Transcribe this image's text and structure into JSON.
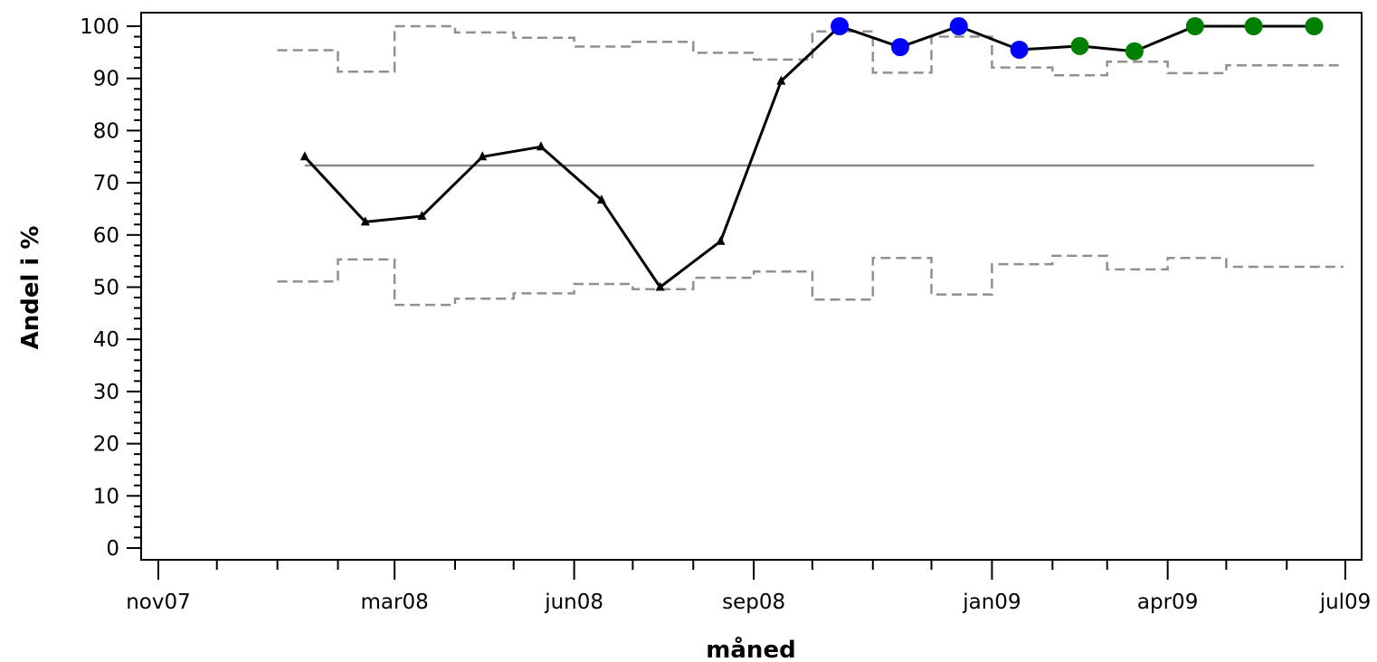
{
  "chart_data": {
    "type": "line",
    "title": "",
    "xlabel": "måned",
    "ylabel": "Andel i %",
    "x_tick_labels": [
      "nov07",
      "mar08",
      "jun08",
      "sep08",
      "jan09",
      "apr09",
      "jul09"
    ],
    "x_tick_dates": [
      "2007-11-01",
      "2008-03-01",
      "2008-06-01",
      "2008-09-01",
      "2009-01-01",
      "2009-04-01",
      "2009-07-01"
    ],
    "xlim": [
      "2007-11-01",
      "2009-07-01"
    ],
    "ylim": [
      0,
      100
    ],
    "y_ticks": [
      0,
      10,
      20,
      30,
      40,
      50,
      60,
      70,
      80,
      90,
      100
    ],
    "grid": false,
    "center_line": 73.3,
    "series": [
      {
        "role": "observed",
        "color": "#000000",
        "points": [
          {
            "x": "2008-01-15",
            "y": 75,
            "marker": "triangle",
            "color": "#000000"
          },
          {
            "x": "2008-02-15",
            "y": 62.5,
            "marker": "triangle",
            "color": "#000000"
          },
          {
            "x": "2008-03-15",
            "y": 63.6,
            "marker": "triangle",
            "color": "#000000"
          },
          {
            "x": "2008-04-15",
            "y": 75,
            "marker": "triangle",
            "color": "#000000"
          },
          {
            "x": "2008-05-15",
            "y": 76.9,
            "marker": "triangle",
            "color": "#000000"
          },
          {
            "x": "2008-06-15",
            "y": 66.7,
            "marker": "triangle",
            "color": "#000000"
          },
          {
            "x": "2008-07-15",
            "y": 50,
            "marker": "triangle",
            "color": "#000000"
          },
          {
            "x": "2008-08-15",
            "y": 58.8,
            "marker": "triangle",
            "color": "#000000"
          },
          {
            "x": "2008-09-15",
            "y": 89.5,
            "marker": "triangle",
            "color": "#000000"
          },
          {
            "x": "2008-10-15",
            "y": 100,
            "marker": "circle",
            "color": "#0000ff"
          },
          {
            "x": "2008-11-15",
            "y": 96,
            "marker": "circle",
            "color": "#0000ff"
          },
          {
            "x": "2008-12-15",
            "y": 100,
            "marker": "circle",
            "color": "#0000ff"
          },
          {
            "x": "2009-01-15",
            "y": 95.5,
            "marker": "circle",
            "color": "#0000ff"
          },
          {
            "x": "2009-02-15",
            "y": 96.2,
            "marker": "circle",
            "color": "#008000"
          },
          {
            "x": "2009-03-15",
            "y": 95.2,
            "marker": "circle",
            "color": "#008000"
          },
          {
            "x": "2009-04-15",
            "y": 100,
            "marker": "circle",
            "color": "#008000"
          },
          {
            "x": "2009-05-15",
            "y": 100,
            "marker": "circle",
            "color": "#008000"
          },
          {
            "x": "2009-06-15",
            "y": 100,
            "marker": "circle",
            "color": "#008000"
          }
        ]
      }
    ],
    "upper_control_limit": {
      "style": "dashed-step",
      "color": "#909090",
      "steps": [
        {
          "from": "2008-01-01",
          "to": "2008-02-01",
          "y": 95.4
        },
        {
          "from": "2008-02-01",
          "to": "2008-03-01",
          "y": 91.3
        },
        {
          "from": "2008-03-01",
          "to": "2008-04-01",
          "y": 100
        },
        {
          "from": "2008-04-01",
          "to": "2008-05-01",
          "y": 98.8
        },
        {
          "from": "2008-05-01",
          "to": "2008-06-01",
          "y": 97.8
        },
        {
          "from": "2008-06-01",
          "to": "2008-07-01",
          "y": 96.1
        },
        {
          "from": "2008-07-01",
          "to": "2008-08-01",
          "y": 97
        },
        {
          "from": "2008-08-01",
          "to": "2008-09-01",
          "y": 94.9
        },
        {
          "from": "2008-09-01",
          "to": "2008-10-01",
          "y": 93.6
        },
        {
          "from": "2008-10-01",
          "to": "2008-11-01",
          "y": 99
        },
        {
          "from": "2008-11-01",
          "to": "2008-12-01",
          "y": 91.1
        },
        {
          "from": "2008-12-01",
          "to": "2009-01-01",
          "y": 98
        },
        {
          "from": "2009-01-01",
          "to": "2009-02-01",
          "y": 92.1
        },
        {
          "from": "2009-02-01",
          "to": "2009-03-01",
          "y": 90.6
        },
        {
          "from": "2009-03-01",
          "to": "2009-04-01",
          "y": 93.2
        },
        {
          "from": "2009-04-01",
          "to": "2009-05-01",
          "y": 91
        },
        {
          "from": "2009-05-01",
          "to": "2009-06-30",
          "y": 92.5
        }
      ]
    },
    "lower_control_limit": {
      "style": "dashed-step",
      "color": "#909090",
      "steps": [
        {
          "from": "2008-01-01",
          "to": "2008-02-01",
          "y": 51.1
        },
        {
          "from": "2008-02-01",
          "to": "2008-03-01",
          "y": 55.3
        },
        {
          "from": "2008-03-01",
          "to": "2008-04-01",
          "y": 46.6
        },
        {
          "from": "2008-04-01",
          "to": "2008-05-01",
          "y": 47.8
        },
        {
          "from": "2008-05-01",
          "to": "2008-06-01",
          "y": 48.8
        },
        {
          "from": "2008-06-01",
          "to": "2008-07-01",
          "y": 50.6
        },
        {
          "from": "2008-07-01",
          "to": "2008-08-01",
          "y": 49.6
        },
        {
          "from": "2008-08-01",
          "to": "2008-09-01",
          "y": 51.8
        },
        {
          "from": "2008-09-01",
          "to": "2008-10-01",
          "y": 53
        },
        {
          "from": "2008-10-01",
          "to": "2008-11-01",
          "y": 47.6
        },
        {
          "from": "2008-11-01",
          "to": "2008-12-01",
          "y": 55.6
        },
        {
          "from": "2008-12-01",
          "to": "2009-01-01",
          "y": 48.6
        },
        {
          "from": "2009-01-01",
          "to": "2009-02-01",
          "y": 54.4
        },
        {
          "from": "2009-02-01",
          "to": "2009-03-01",
          "y": 56
        },
        {
          "from": "2009-03-01",
          "to": "2009-04-01",
          "y": 53.4
        },
        {
          "from": "2009-04-01",
          "to": "2009-05-01",
          "y": 55.6
        },
        {
          "from": "2009-05-01",
          "to": "2009-06-30",
          "y": 53.9
        }
      ]
    }
  }
}
